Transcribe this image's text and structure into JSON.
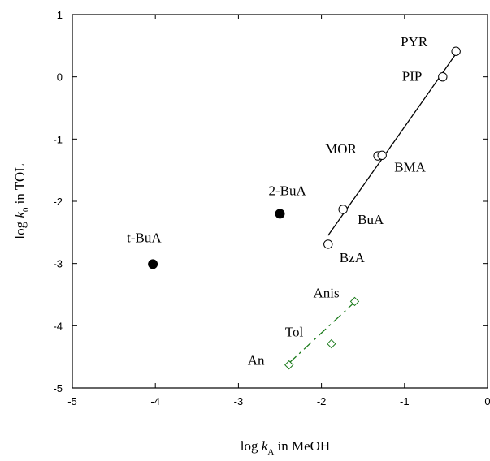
{
  "chart_data": {
    "type": "scatter",
    "xlabel": {
      "pre": "log ",
      "italic": "k",
      "sub": "A",
      "post": " in MeOH"
    },
    "ylabel": {
      "pre": "log ",
      "italic": "k",
      "sub": "0",
      "post": " in TOL"
    },
    "xlim": [
      -5,
      0
    ],
    "ylim": [
      -5,
      1
    ],
    "xticks": [
      "-5",
      "-4",
      "-3",
      "-2",
      "-1",
      "0"
    ],
    "yticks": [
      "-5",
      "-4",
      "-3",
      "-2",
      "-1",
      "0",
      "1"
    ],
    "grid": false,
    "series": [
      {
        "marker": "open-circle",
        "color": "#000000",
        "points": [
          {
            "label": "PYR",
            "x": -0.38,
            "y": 0.41
          },
          {
            "label": "PIP",
            "x": -0.54,
            "y": 0.0
          },
          {
            "label": "MOR",
            "x": -1.32,
            "y": -1.27
          },
          {
            "label": "BMA",
            "x": -1.27,
            "y": -1.26
          },
          {
            "label": "BuA",
            "x": -1.74,
            "y": -2.13
          },
          {
            "label": "BzA",
            "x": -1.92,
            "y": -2.69
          }
        ],
        "fit": {
          "style": "solid",
          "x1": -1.92,
          "y1": -2.55,
          "x2": -0.38,
          "y2": 0.37
        }
      },
      {
        "marker": "filled-circle",
        "color": "#000000",
        "points": [
          {
            "label": "2-BuA",
            "x": -2.5,
            "y": -2.2
          },
          {
            "label": "t-BuA",
            "x": -4.03,
            "y": -3.01
          }
        ]
      },
      {
        "marker": "open-diamond",
        "color": "#1a7a1a",
        "points": [
          {
            "label": "Anis",
            "x": -1.6,
            "y": -3.61
          },
          {
            "label": "Tol",
            "x": -1.88,
            "y": -4.29
          },
          {
            "label": "An",
            "x": -2.39,
            "y": -4.63
          }
        ],
        "fit": {
          "style": "dashed",
          "x1": -2.39,
          "y1": -4.6,
          "x2": -1.6,
          "y2": -3.62
        }
      }
    ]
  }
}
